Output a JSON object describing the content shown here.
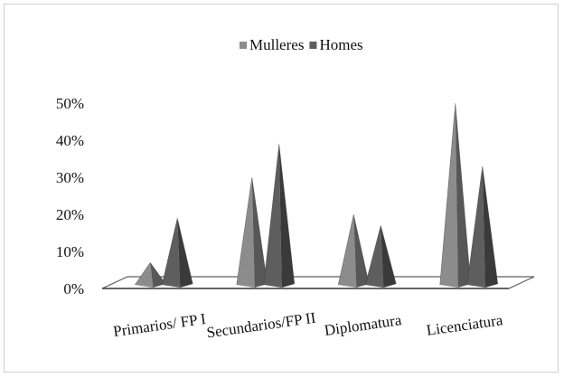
{
  "chart_data": {
    "type": "bar",
    "style": "3d-cone",
    "categories": [
      "Primarios/ FP I",
      "Secundarios/FP II",
      "Diplomatura",
      "Licenciatura"
    ],
    "series": [
      {
        "name": "Mulleres",
        "values": [
          0.06,
          0.29,
          0.19,
          0.49
        ]
      },
      {
        "name": "Homes",
        "values": [
          0.18,
          0.38,
          0.16,
          0.32
        ]
      }
    ],
    "yticks": [
      "0%",
      "10%",
      "20%",
      "30%",
      "40%",
      "50%"
    ],
    "ylim": [
      0,
      0.5
    ],
    "legend_position": "top",
    "grid": false,
    "colors": {
      "Mulleres": "#8c8c8c",
      "Homes": "#5e5e5e",
      "floor": "#ffffff",
      "floor_edge": "#606060"
    }
  }
}
